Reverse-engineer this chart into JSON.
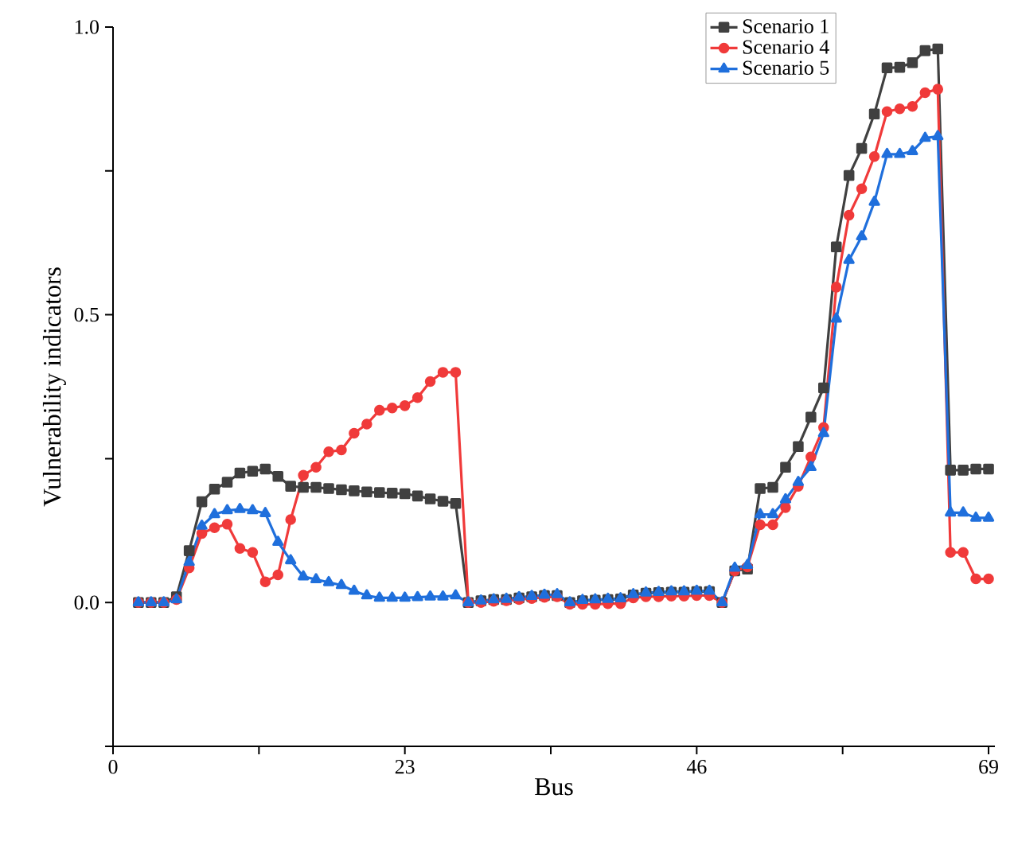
{
  "chart_data": {
    "type": "line",
    "xlabel": "Bus",
    "ylabel": "Vulnerability indicators",
    "xlim": [
      0,
      69.5
    ],
    "ylim": [
      -0.25,
      1.0
    ],
    "xticks": [
      0,
      {
        "value": 11.5,
        "label": null
      },
      23,
      {
        "value": 34.5,
        "label": null
      },
      46,
      {
        "value": 57.5,
        "label": null
      },
      69
    ],
    "yticks": [
      {
        "value": -0.25,
        "label": null
      },
      {
        "value": 0,
        "label": "0.0"
      },
      {
        "value": 0.25,
        "label": null
      },
      {
        "value": 0.5,
        "label": "0.5"
      },
      {
        "value": 0.75,
        "label": null
      },
      {
        "value": 1.0,
        "label": "1.0"
      }
    ],
    "grid": false,
    "legend": "top right",
    "x": [
      2,
      3,
      4,
      5,
      6,
      7,
      8,
      9,
      10,
      11,
      12,
      13,
      14,
      15,
      16,
      17,
      18,
      19,
      20,
      21,
      22,
      23,
      24,
      25,
      26,
      27,
      28,
      29,
      30,
      31,
      32,
      33,
      34,
      35,
      36,
      37,
      38,
      39,
      40,
      41,
      42,
      43,
      44,
      45,
      46,
      47,
      48,
      49,
      50,
      51,
      52,
      53,
      54,
      55,
      56,
      57,
      58,
      59,
      60,
      61,
      62,
      63,
      64,
      65,
      66,
      67,
      68,
      69
    ],
    "series": [
      {
        "name": "Scenario 1",
        "color": "#404040",
        "marker": "square",
        "values": [
          0,
          0,
          0,
          0.01,
          0.09,
          0.175,
          0.197,
          0.209,
          0.225,
          0.228,
          0.232,
          0.219,
          0.202,
          0.2,
          0.2,
          0.198,
          0.196,
          0.194,
          0.192,
          0.191,
          0.19,
          0.189,
          0.185,
          0.18,
          0.176,
          0.172,
          0,
          0.003,
          0.005,
          0.005,
          0.008,
          0.01,
          0.012,
          0.012,
          0,
          0.003,
          0.004,
          0.005,
          0.006,
          0.013,
          0.016,
          0.017,
          0.018,
          0.018,
          0.019,
          0.019,
          0,
          0.055,
          0.058,
          0.198,
          0.2,
          0.235,
          0.271,
          0.322,
          0.373,
          0.618,
          0.742,
          0.789,
          0.849,
          0.929,
          0.93,
          0.938,
          0.959,
          0.962,
          0.23,
          0.23,
          0.232,
          0.232
        ]
      },
      {
        "name": "Scenario 4",
        "color": "#f03a3a",
        "marker": "circle",
        "values": [
          0,
          0,
          0,
          0.005,
          0.06,
          0.12,
          0.13,
          0.136,
          0.094,
          0.087,
          0.036,
          0.048,
          0.144,
          0.221,
          0.235,
          0.262,
          0.265,
          0.294,
          0.31,
          0.334,
          0.338,
          0.342,
          0.356,
          0.384,
          0.4,
          0.4,
          0,
          0,
          0.002,
          0.003,
          0.005,
          0.007,
          0.009,
          0.01,
          -0.003,
          -0.003,
          -0.003,
          -0.002,
          -0.002,
          0.008,
          0.01,
          0.01,
          0.011,
          0.011,
          0.012,
          0.012,
          0,
          0.055,
          0.062,
          0.135,
          0.135,
          0.165,
          0.202,
          0.253,
          0.304,
          0.548,
          0.673,
          0.719,
          0.775,
          0.853,
          0.858,
          0.862,
          0.886,
          0.892,
          0.087,
          0.087,
          0.041,
          0.041
        ]
      },
      {
        "name": "Scenario 5",
        "color": "#1f6fdc",
        "marker": "triangle",
        "values": [
          0,
          0,
          0,
          0.005,
          0.07,
          0.133,
          0.153,
          0.16,
          0.162,
          0.16,
          0.155,
          0.105,
          0.073,
          0.045,
          0.04,
          0.035,
          0.03,
          0.02,
          0.012,
          0.008,
          0.008,
          0.008,
          0.009,
          0.01,
          0.01,
          0.012,
          0,
          0.003,
          0.005,
          0.006,
          0.009,
          0.011,
          0.013,
          0.014,
          0,
          0.004,
          0.005,
          0.006,
          0.007,
          0.014,
          0.017,
          0.018,
          0.019,
          0.019,
          0.02,
          0.02,
          0,
          0.06,
          0.065,
          0.153,
          0.153,
          0.179,
          0.209,
          0.235,
          0.294,
          0.493,
          0.595,
          0.636,
          0.696,
          0.779,
          0.779,
          0.784,
          0.807,
          0.81,
          0.156,
          0.156,
          0.147,
          0.147
        ]
      }
    ]
  }
}
